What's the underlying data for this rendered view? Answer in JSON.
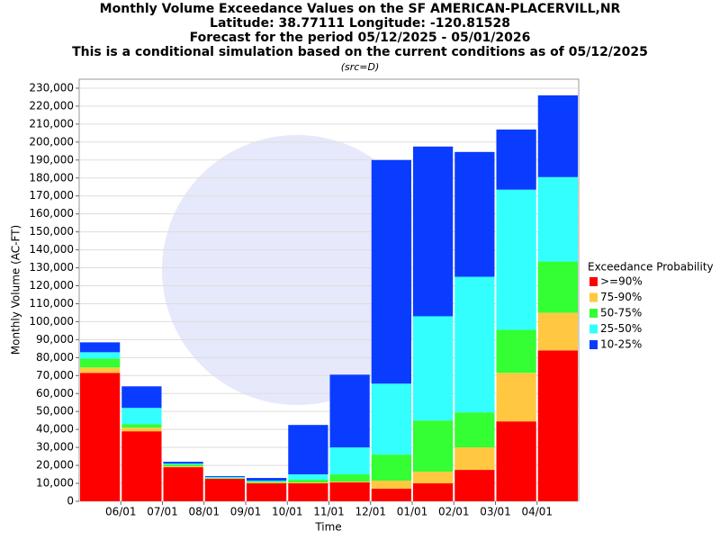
{
  "chart_data": {
    "type": "stacked_bar",
    "title": [
      "Monthly Volume Exceedance Values on the SF AMERICAN-PLACERVILL,NR",
      "Latitude: 38.77111 Longitude: -120.81528",
      "Forecast for the period 05/12/2025 - 05/01/2026",
      "This is a conditional simulation based on the current conditions as of 05/12/2025"
    ],
    "subtitle": "(src=D)",
    "y_label": "Monthly Volume (AC-FT)",
    "x_label": "Time",
    "legend_title": "Exceedance Probability",
    "xticks": [
      "06/01",
      "07/01",
      "08/01",
      "09/01",
      "10/01",
      "11/01",
      "12/01",
      "01/01",
      "02/01",
      "03/01",
      "04/01"
    ],
    "series": [
      {
        "name": ">=90%",
        "color": "#ff0000",
        "values": [
          71500,
          39000,
          19000,
          12500,
          10000,
          10000,
          10500,
          7000,
          10000,
          17500,
          44500,
          84000
        ]
      },
      {
        "name": "75-90%",
        "color": "#ffc840",
        "values": [
          3000,
          2000,
          500,
          200,
          500,
          500,
          500,
          4500,
          6500,
          12500,
          27000,
          21000
        ]
      },
      {
        "name": "50-75%",
        "color": "#33ff33",
        "values": [
          5000,
          2000,
          1000,
          300,
          500,
          1500,
          4000,
          14500,
          28500,
          19500,
          24000,
          28500
        ]
      },
      {
        "name": "25-50%",
        "color": "#33ffff",
        "values": [
          3500,
          9000,
          500,
          500,
          500,
          3000,
          15000,
          39500,
          58000,
          75500,
          78000,
          47000
        ]
      },
      {
        "name": "10-25%",
        "color": "#0a3cff",
        "values": [
          5500,
          12000,
          1000,
          500,
          1500,
          27500,
          40500,
          124500,
          94500,
          69500,
          33500,
          45500
        ]
      }
    ],
    "ylim": [
      0,
      235000
    ],
    "yticks": [
      0,
      {
        "value": 10000,
        "label": "10,000"
      },
      {
        "value": 20000,
        "label": "20,000"
      },
      {
        "value": 30000,
        "label": "30,000"
      },
      {
        "value": 40000,
        "label": "40,000"
      },
      {
        "value": 50000,
        "label": "50,000"
      },
      {
        "value": 60000,
        "label": "60,000"
      },
      {
        "value": 70000,
        "label": "70,000"
      },
      {
        "value": 80000,
        "label": "80,000"
      },
      {
        "value": 90000,
        "label": "90,000"
      },
      {
        "value": 100000,
        "label": "100,000"
      },
      {
        "value": 110000,
        "label": "110,000"
      },
      {
        "value": 120000,
        "label": "120,000"
      },
      {
        "value": 130000,
        "label": "130,000"
      },
      {
        "value": 140000,
        "label": "140,000"
      },
      {
        "value": 150000,
        "label": "150,000"
      },
      {
        "value": 160000,
        "label": "160,000"
      },
      {
        "value": 170000,
        "label": "170,000"
      },
      {
        "value": 180000,
        "label": "180,000"
      },
      {
        "value": 190000,
        "label": "190,000"
      },
      {
        "value": 200000,
        "label": "200,000"
      },
      {
        "value": 210000,
        "label": "210,000"
      },
      {
        "value": 220000,
        "label": "220,000"
      },
      {
        "value": 230000,
        "label": "230,000"
      }
    ],
    "grid": true
  }
}
